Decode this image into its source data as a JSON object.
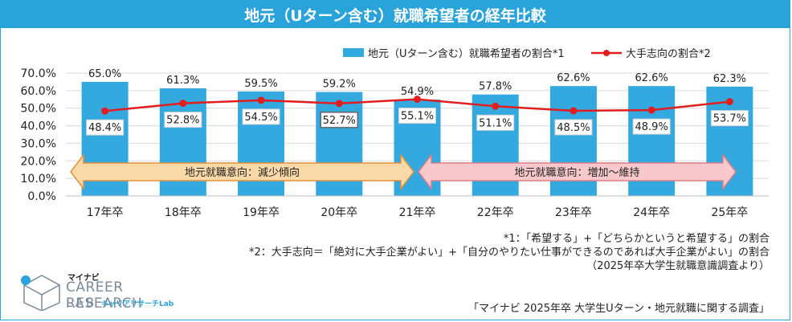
{
  "title": "地元（Uターン含む）就職希望者の経年比較",
  "chart_data": {
    "type": "bar+line",
    "categories": [
      "17年卒",
      "18年卒",
      "19年卒",
      "20年卒",
      "21年卒",
      "22年卒",
      "23年卒",
      "24年卒",
      "25年卒"
    ],
    "ylim": [
      0,
      70
    ],
    "yticks": [
      "0.0%",
      "10.0%",
      "20.0%",
      "30.0%",
      "40.0%",
      "50.0%",
      "60.0%",
      "70.0%"
    ],
    "series": [
      {
        "name": "地元（Uターン含む）就職希望者の割合*1",
        "type": "bar",
        "color": "#33a9e0",
        "values": [
          65.0,
          61.3,
          59.5,
          59.2,
          54.9,
          57.8,
          62.6,
          62.6,
          62.3
        ],
        "labels": [
          "65.0%",
          "61.3%",
          "59.5%",
          "59.2%",
          "54.9%",
          "57.8%",
          "62.6%",
          "62.6%",
          "62.3%"
        ]
      },
      {
        "name": "大手志向の割合*2",
        "type": "line",
        "color": "#e21d1d",
        "values": [
          48.4,
          52.8,
          54.5,
          52.7,
          55.1,
          51.1,
          48.5,
          48.9,
          53.7
        ],
        "labels": [
          "48.4%",
          "52.8%",
          "54.5%",
          "52.7%",
          "55.1%",
          "51.1%",
          "48.5%",
          "48.9%",
          "53.7%"
        ]
      }
    ],
    "annotations": [
      {
        "text": "地元就職意向：減少傾向",
        "from": 0,
        "to": 4,
        "color": "#fad9a8",
        "border": "#e0913a"
      },
      {
        "text": "地元就職意向：増加～維持",
        "from": 4,
        "to": 8,
        "color": "#f8c9cc",
        "border": "#e07d86"
      }
    ],
    "legend_position": "top-right"
  },
  "notes": [
    "*1：「希望する」+「どちらかというと希望する」の割合",
    "*2：大手志向＝「絶対に大手企業がよい」+「自分のやりたい仕事ができるのであれば大手企業がよい」の割合",
    "（2025年卒大学生就職意識調査より）"
  ],
  "logo": {
    "sub": "マイナビ",
    "main": "CAREER RESEARCH",
    "lab": "LAB",
    "kana": "キャリアリサーチLab"
  },
  "source": "「マイナビ 2025年卒 大学生Uターン・地元就職に関する調査」"
}
